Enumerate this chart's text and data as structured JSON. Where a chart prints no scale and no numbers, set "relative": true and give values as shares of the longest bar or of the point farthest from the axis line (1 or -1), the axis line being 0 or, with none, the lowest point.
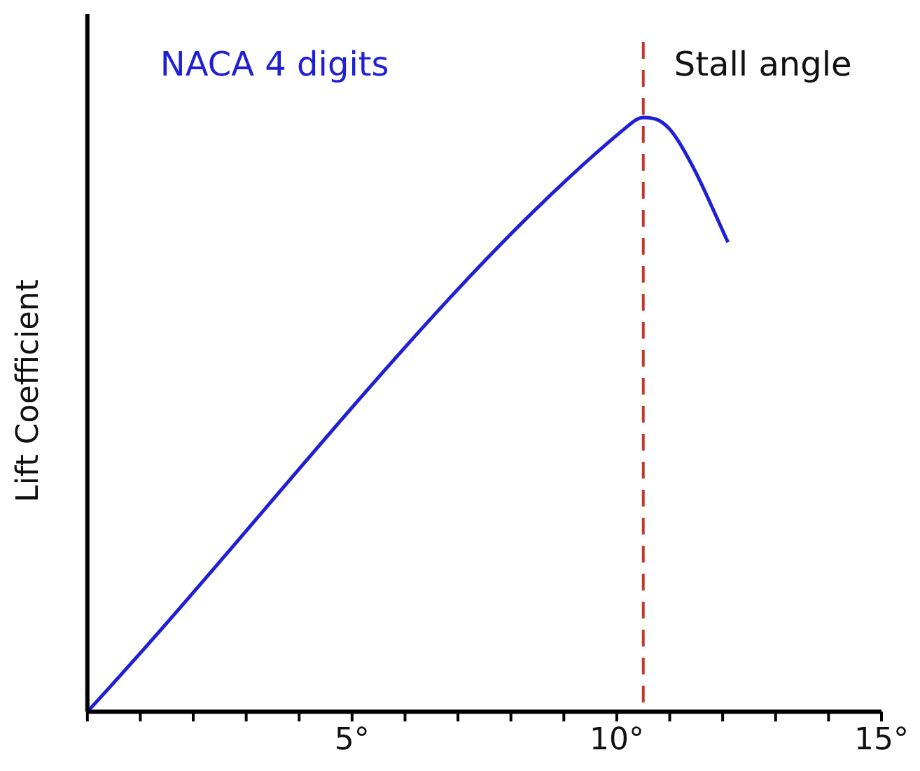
{
  "chart_data": {
    "type": "line",
    "relative": true,
    "ylabel": "Lift Coefficient",
    "xlim": [
      0,
      15
    ],
    "xticks": [
      {
        "value": 0,
        "label": null
      },
      {
        "value": 1,
        "label": null
      },
      {
        "value": 2,
        "label": null
      },
      {
        "value": 3,
        "label": null
      },
      {
        "value": 4,
        "label": null
      },
      {
        "value": 5,
        "label": "5°"
      },
      {
        "value": 6,
        "label": null
      },
      {
        "value": 7,
        "label": null
      },
      {
        "value": 8,
        "label": null
      },
      {
        "value": 9,
        "label": null
      },
      {
        "value": 10,
        "label": "10°"
      },
      {
        "value": 11,
        "label": null
      },
      {
        "value": 12,
        "label": null
      },
      {
        "value": 13,
        "label": null
      },
      {
        "value": 14,
        "label": null
      },
      {
        "value": 15,
        "label": "15°"
      }
    ],
    "series": [
      {
        "name": "NACA 4 digits",
        "color": "#1f1fd6",
        "x": [
          0,
          10.2,
          10.5,
          10.8,
          11.05,
          11.45,
          12.1
        ],
        "values": [
          0,
          0.985,
          1,
          0.995,
          0.975,
          0.915,
          0.79
        ]
      }
    ],
    "ref_lines": [
      {
        "axis": "x",
        "value": 10.5,
        "label": "Stall angle",
        "color": "#c0392b",
        "line_style": "dashed"
      }
    ],
    "grid": false,
    "legend": false,
    "marker": "none"
  }
}
